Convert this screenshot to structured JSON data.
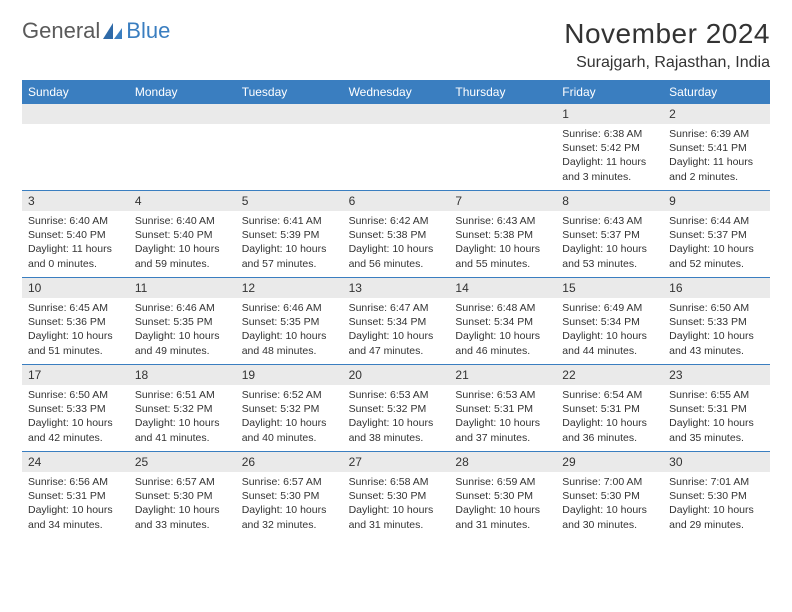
{
  "logo": {
    "general": "General",
    "blue": "Blue"
  },
  "header": {
    "month_title": "November 2024",
    "location": "Surajgarh, Rajasthan, India"
  },
  "colors": {
    "header_bar": "#3a7ec0",
    "day_number_bg": "#eaeaea",
    "week_divider": "#3a7ec0",
    "text": "#333333",
    "background": "#ffffff"
  },
  "weekdays": [
    "Sunday",
    "Monday",
    "Tuesday",
    "Wednesday",
    "Thursday",
    "Friday",
    "Saturday"
  ],
  "weeks": [
    [
      null,
      null,
      null,
      null,
      null,
      {
        "n": "1",
        "sunrise": "Sunrise: 6:38 AM",
        "sunset": "Sunset: 5:42 PM",
        "daylight": "Daylight: 11 hours and 3 minutes."
      },
      {
        "n": "2",
        "sunrise": "Sunrise: 6:39 AM",
        "sunset": "Sunset: 5:41 PM",
        "daylight": "Daylight: 11 hours and 2 minutes."
      }
    ],
    [
      {
        "n": "3",
        "sunrise": "Sunrise: 6:40 AM",
        "sunset": "Sunset: 5:40 PM",
        "daylight": "Daylight: 11 hours and 0 minutes."
      },
      {
        "n": "4",
        "sunrise": "Sunrise: 6:40 AM",
        "sunset": "Sunset: 5:40 PM",
        "daylight": "Daylight: 10 hours and 59 minutes."
      },
      {
        "n": "5",
        "sunrise": "Sunrise: 6:41 AM",
        "sunset": "Sunset: 5:39 PM",
        "daylight": "Daylight: 10 hours and 57 minutes."
      },
      {
        "n": "6",
        "sunrise": "Sunrise: 6:42 AM",
        "sunset": "Sunset: 5:38 PM",
        "daylight": "Daylight: 10 hours and 56 minutes."
      },
      {
        "n": "7",
        "sunrise": "Sunrise: 6:43 AM",
        "sunset": "Sunset: 5:38 PM",
        "daylight": "Daylight: 10 hours and 55 minutes."
      },
      {
        "n": "8",
        "sunrise": "Sunrise: 6:43 AM",
        "sunset": "Sunset: 5:37 PM",
        "daylight": "Daylight: 10 hours and 53 minutes."
      },
      {
        "n": "9",
        "sunrise": "Sunrise: 6:44 AM",
        "sunset": "Sunset: 5:37 PM",
        "daylight": "Daylight: 10 hours and 52 minutes."
      }
    ],
    [
      {
        "n": "10",
        "sunrise": "Sunrise: 6:45 AM",
        "sunset": "Sunset: 5:36 PM",
        "daylight": "Daylight: 10 hours and 51 minutes."
      },
      {
        "n": "11",
        "sunrise": "Sunrise: 6:46 AM",
        "sunset": "Sunset: 5:35 PM",
        "daylight": "Daylight: 10 hours and 49 minutes."
      },
      {
        "n": "12",
        "sunrise": "Sunrise: 6:46 AM",
        "sunset": "Sunset: 5:35 PM",
        "daylight": "Daylight: 10 hours and 48 minutes."
      },
      {
        "n": "13",
        "sunrise": "Sunrise: 6:47 AM",
        "sunset": "Sunset: 5:34 PM",
        "daylight": "Daylight: 10 hours and 47 minutes."
      },
      {
        "n": "14",
        "sunrise": "Sunrise: 6:48 AM",
        "sunset": "Sunset: 5:34 PM",
        "daylight": "Daylight: 10 hours and 46 minutes."
      },
      {
        "n": "15",
        "sunrise": "Sunrise: 6:49 AM",
        "sunset": "Sunset: 5:34 PM",
        "daylight": "Daylight: 10 hours and 44 minutes."
      },
      {
        "n": "16",
        "sunrise": "Sunrise: 6:50 AM",
        "sunset": "Sunset: 5:33 PM",
        "daylight": "Daylight: 10 hours and 43 minutes."
      }
    ],
    [
      {
        "n": "17",
        "sunrise": "Sunrise: 6:50 AM",
        "sunset": "Sunset: 5:33 PM",
        "daylight": "Daylight: 10 hours and 42 minutes."
      },
      {
        "n": "18",
        "sunrise": "Sunrise: 6:51 AM",
        "sunset": "Sunset: 5:32 PM",
        "daylight": "Daylight: 10 hours and 41 minutes."
      },
      {
        "n": "19",
        "sunrise": "Sunrise: 6:52 AM",
        "sunset": "Sunset: 5:32 PM",
        "daylight": "Daylight: 10 hours and 40 minutes."
      },
      {
        "n": "20",
        "sunrise": "Sunrise: 6:53 AM",
        "sunset": "Sunset: 5:32 PM",
        "daylight": "Daylight: 10 hours and 38 minutes."
      },
      {
        "n": "21",
        "sunrise": "Sunrise: 6:53 AM",
        "sunset": "Sunset: 5:31 PM",
        "daylight": "Daylight: 10 hours and 37 minutes."
      },
      {
        "n": "22",
        "sunrise": "Sunrise: 6:54 AM",
        "sunset": "Sunset: 5:31 PM",
        "daylight": "Daylight: 10 hours and 36 minutes."
      },
      {
        "n": "23",
        "sunrise": "Sunrise: 6:55 AM",
        "sunset": "Sunset: 5:31 PM",
        "daylight": "Daylight: 10 hours and 35 minutes."
      }
    ],
    [
      {
        "n": "24",
        "sunrise": "Sunrise: 6:56 AM",
        "sunset": "Sunset: 5:31 PM",
        "daylight": "Daylight: 10 hours and 34 minutes."
      },
      {
        "n": "25",
        "sunrise": "Sunrise: 6:57 AM",
        "sunset": "Sunset: 5:30 PM",
        "daylight": "Daylight: 10 hours and 33 minutes."
      },
      {
        "n": "26",
        "sunrise": "Sunrise: 6:57 AM",
        "sunset": "Sunset: 5:30 PM",
        "daylight": "Daylight: 10 hours and 32 minutes."
      },
      {
        "n": "27",
        "sunrise": "Sunrise: 6:58 AM",
        "sunset": "Sunset: 5:30 PM",
        "daylight": "Daylight: 10 hours and 31 minutes."
      },
      {
        "n": "28",
        "sunrise": "Sunrise: 6:59 AM",
        "sunset": "Sunset: 5:30 PM",
        "daylight": "Daylight: 10 hours and 31 minutes."
      },
      {
        "n": "29",
        "sunrise": "Sunrise: 7:00 AM",
        "sunset": "Sunset: 5:30 PM",
        "daylight": "Daylight: 10 hours and 30 minutes."
      },
      {
        "n": "30",
        "sunrise": "Sunrise: 7:01 AM",
        "sunset": "Sunset: 5:30 PM",
        "daylight": "Daylight: 10 hours and 29 minutes."
      }
    ]
  ]
}
